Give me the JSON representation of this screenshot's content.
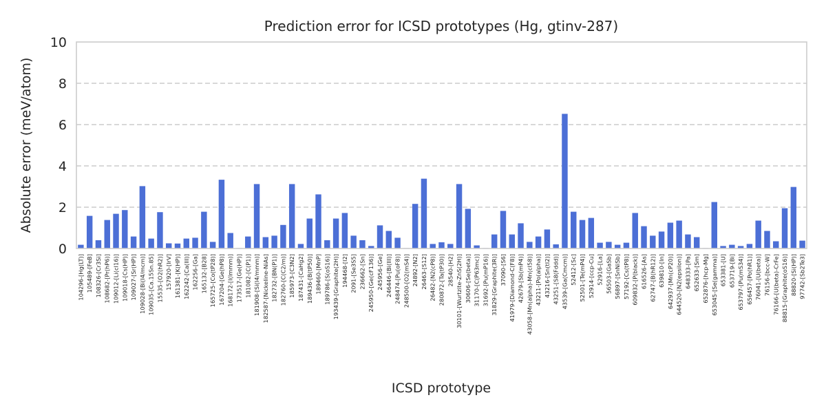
{
  "chart_data": {
    "type": "bar",
    "title": "Prediction error for ICSD prototypes (Hg, gtinv-287)",
    "xlabel": "ICSD prototype",
    "ylabel": "Absolute error (meV/atom)",
    "ylim": [
      0,
      10
    ],
    "yticks": [
      0,
      2,
      4,
      6,
      8,
      10
    ],
    "grid": "y-dashed",
    "bar_color": "#4c6fd6",
    "categories": [
      "104296-[Hg(LT)]",
      "105489-[FeB]",
      "108326-[Cr3Si]",
      "108682-[Pr(hP6)]",
      "109012-[Li(cI16)]",
      "109018-[Cs(HP)]",
      "109027-[Sr(HP)]",
      "109028-[Bi(I4/mcm)]",
      "109035-[Ca.15Sn.85]",
      "15535-[O2(hR2)]",
      "157920-[IrV]",
      "161381-[K(HP)]",
      "162242-[Ca(III)]",
      "162256-[Ga]",
      "165132-[B28]",
      "165725-[Co(tP28)]",
      "167204-[Ge(hP8)]",
      "168172-[I(Immm)]",
      "173517-[Ge(HP)]",
      "181082-[C(P1)]",
      "181908-[Si(I4/mmm)]",
      "182587-[Nickeline-NiAs]",
      "182732-[BN(P1)]",
      "182760-[C(C2/m)]",
      "185973-[C3N2]",
      "187431-[CaHg2]",
      "189436-[B(tP50)]",
      "189460-[MnP]",
      "189786-[S(oS16)]",
      "193439-[Graphite(2H)]",
      "194468-[I2]",
      "2091-[Se3S5]",
      "236662-[Sn]",
      "245950-[Ge(cF136)]",
      "245956-[Ge]",
      "246446-[Bi(III)]",
      "248474-[Pu(oF8)]",
      "248500-[O2(mS4)]",
      "24892-[N2]",
      "26463-[S12]",
      "26482-[N2(cP8)]",
      "280872-[Ta(tP30)]",
      "28540-[H2]",
      "30101-[Wurtzite-ZnS(2H)]",
      "30606-[Se(beta)]",
      "31170-[C(P63mc)]",
      "31692-[Pu(mP16)]",
      "31829-[Graphite(3R)]",
      "37090-[S6]",
      "41979-[Diamond-C(F8)]",
      "42679-[Sb(mP4)]",
      "43058-[Mn(alpha)-Mn(cI58)]",
      "43211-[Po(alpha)]",
      "43216-[Sn(tI2)]",
      "43251-[S8(Fddd)]",
      "43539-[Ga(Cmcm)]",
      "52412-[Sc]",
      "52501-[Te(mP4)]",
      "52914-[ccp-Cu]",
      "52916-[La]",
      "56503-[GaSb]",
      "56897-[SnNiSb]",
      "57192-[Cs(tP8)]",
      "609832-[P(black)]",
      "616526-[As]",
      "62747-[B(hR12)]",
      "639810-[In]",
      "642937-[Mn(cP20)]",
      "644520-[N2(epsilon)]",
      "648333-[Pa]",
      "652633-[Sm]",
      "652876-[hcp-Mg]",
      "653045-[Se(gamma)]",
      "653381-[U]",
      "653719-[Bi]",
      "653797-[Pu(mS34)]",
      "656457-[Po(hR1)]",
      "76041-[U(beta)]",
      "76156-[bcc-W]",
      "76166-[U(beta)-CrFe]",
      "88815-[Graphite(oS16)]",
      "88820-[Si(HP)]",
      "97742-[Sb2Te3]"
    ],
    "values": [
      0.18,
      1.58,
      0.4,
      1.38,
      1.68,
      1.86,
      0.58,
      3.02,
      0.48,
      1.76,
      0.25,
      0.24,
      0.48,
      0.52,
      1.78,
      0.32,
      3.33,
      0.75,
      0.02,
      0.58,
      3.12,
      0.55,
      0.62,
      1.14,
      3.12,
      0.22,
      1.45,
      2.62,
      0.4,
      1.45,
      1.72,
      0.62,
      0.4,
      0.12,
      1.12,
      0.85,
      0.52,
      0.02,
      2.16,
      3.38,
      0.22,
      0.3,
      0.22,
      3.12,
      1.92,
      0.15,
      0.02,
      0.68,
      1.82,
      0.68,
      1.22,
      0.32,
      0.58,
      0.92,
      0.2,
      6.52,
      1.78,
      1.38,
      1.48,
      0.28,
      0.32,
      0.18,
      0.28,
      1.72,
      1.08,
      0.62,
      0.82,
      1.25,
      1.35,
      0.68,
      0.55,
      0.02,
      2.25,
      0.12,
      0.18,
      0.12,
      0.22,
      1.35,
      0.85,
      0.35,
      1.95,
      2.98,
      0.38
    ]
  }
}
